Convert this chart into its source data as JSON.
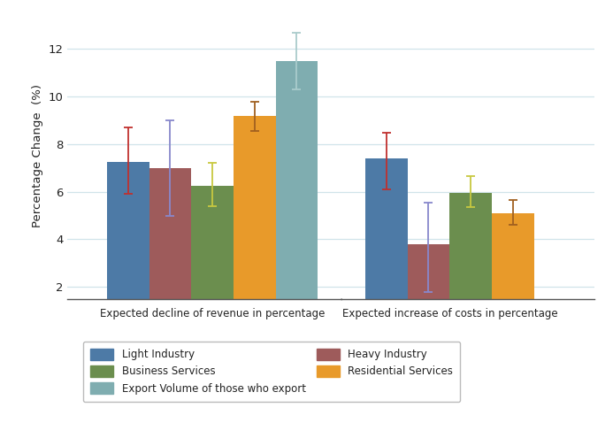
{
  "groups": [
    "Expected decline of revenue in percentage",
    "Expected increase of costs in percentage"
  ],
  "categories": [
    "Light Industry",
    "Heavy Industry",
    "Business Services",
    "Residential Services",
    "Export Volume of those who export"
  ],
  "bar_colors": [
    "#4d7aa6",
    "#9e5b5b",
    "#6b8e4e",
    "#e89a2a",
    "#7fadb0"
  ],
  "values": {
    "group1": [
      7.25,
      7.0,
      6.25,
      9.2,
      11.5
    ],
    "group2": [
      7.4,
      3.8,
      5.95,
      5.1,
      null
    ]
  },
  "errors": {
    "group1_upper": [
      8.7,
      9.0,
      7.2,
      9.8,
      12.7
    ],
    "group1_lower": [
      5.9,
      5.0,
      5.4,
      8.55,
      10.3
    ],
    "group2_upper": [
      8.5,
      5.55,
      6.65,
      5.65,
      null
    ],
    "group2_lower": [
      6.1,
      1.8,
      5.35,
      4.6,
      null
    ]
  },
  "error_colors": [
    "#c0302e",
    "#8888cc",
    "#c8c840",
    "#a06020",
    "#aacccc"
  ],
  "ylabel": "Percentage Change  (%)",
  "ylim": [
    1.5,
    13.5
  ],
  "yticks": [
    2,
    4,
    6,
    8,
    10,
    12
  ],
  "background_color": "#ffffff",
  "grid_color": "#d0e4ea",
  "axis_color": "#555555",
  "text_color": "#222222",
  "legend_order": [
    0,
    2,
    4,
    1,
    3
  ]
}
